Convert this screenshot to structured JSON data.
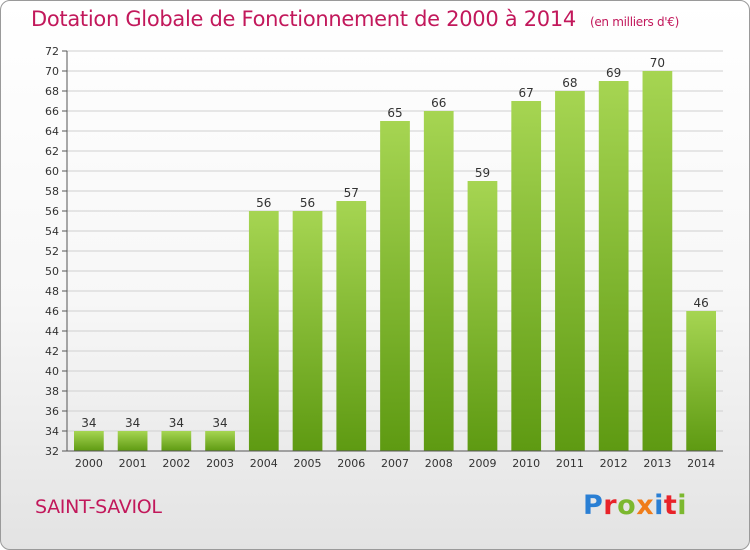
{
  "header": {
    "title": "Dotation Globale de Fonctionnement de 2000 à 2014",
    "subtitle": "(en milliers d'€)"
  },
  "footer": {
    "commune": "SAINT-SAVIOL",
    "brand_letters": [
      "P",
      "r",
      "o",
      "x",
      "i",
      "t",
      "i"
    ],
    "brand_colors": [
      "#2a7fd4",
      "#e8232a",
      "#7cb82f",
      "#f07d1a",
      "#2a7fd4",
      "#e8232a",
      "#7cb82f"
    ]
  },
  "chart_data": {
    "type": "bar",
    "title": "Dotation Globale de Fonctionnement de 2000 à 2014",
    "subtitle": "(en milliers d'€)",
    "categories": [
      "2000",
      "2001",
      "2002",
      "2003",
      "2004",
      "2005",
      "2006",
      "2007",
      "2008",
      "2009",
      "2010",
      "2011",
      "2012",
      "2013",
      "2014"
    ],
    "values": [
      34,
      34,
      34,
      34,
      56,
      56,
      57,
      65,
      66,
      59,
      67,
      68,
      69,
      70,
      46
    ],
    "ylim": [
      32,
      72
    ],
    "yticks": [
      32,
      34,
      36,
      38,
      40,
      42,
      44,
      46,
      48,
      50,
      52,
      54,
      56,
      58,
      60,
      62,
      64,
      66,
      68,
      70,
      72
    ],
    "grid": true,
    "colors": {
      "bar_top": "#a6d552",
      "bar_bottom": "#5e9a12",
      "grid": "#d0d0d0"
    }
  }
}
